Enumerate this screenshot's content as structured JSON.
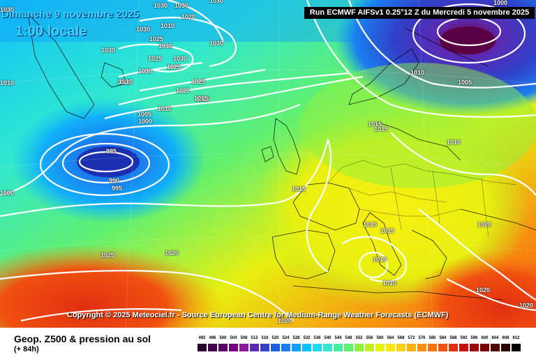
{
  "map": {
    "date_title": "Dimanche 9 novembre 2025",
    "time_title": "1:00 locale",
    "run_info": "Run ECMWF AIFSv1 0.25°12 Z du Mercredi 5 novembre 2025",
    "copyright": "Copyright © 2025 Meteociel.fr - Source European Centre for Medium-Range Weather Forecasts (ECMWF)",
    "isobar_labels": [
      "1030",
      "1030",
      "1030",
      "1030",
      "1030",
      "1030",
      "1030",
      "1025",
      "1030",
      "1025",
      "1030",
      "1025",
      "1030",
      "1025",
      "1020",
      "1025",
      "1015",
      "1010",
      "1005",
      "1000",
      "985",
      "990",
      "995",
      "1015",
      "1015",
      "1015",
      "1015",
      "1015",
      "1010",
      "1010",
      "1005",
      "1000",
      "1020",
      "1025",
      "1020",
      "1020",
      "1020",
      "1020",
      "1010",
      "1010",
      "1010",
      "1020",
      "1000",
      "1015",
      "1010",
      "1010"
    ]
  },
  "footer": {
    "product_title": "Geop. Z500 & pression au sol",
    "lead_time": "(+ 84h)"
  },
  "legend": {
    "unit_ticks": [
      "492",
      "496",
      "500",
      "504",
      "508",
      "512",
      "516",
      "520",
      "524",
      "528",
      "532",
      "536",
      "540",
      "544",
      "548",
      "552",
      "556",
      "560",
      "564",
      "568",
      "572",
      "576",
      "580",
      "584",
      "588",
      "592",
      "596",
      "600",
      "604",
      "608",
      "612"
    ],
    "colors": [
      "#2a0030",
      "#40004a",
      "#5a0066",
      "#74007f",
      "#8a1a9a",
      "#5a2ab4",
      "#3040c8",
      "#2060e0",
      "#1a80f0",
      "#10a0f8",
      "#10c0f8",
      "#20d8f0",
      "#30e8d0",
      "#40f0a0",
      "#60f070",
      "#90f040",
      "#c0f020",
      "#e8f010",
      "#f8e810",
      "#f8d010",
      "#f8b010",
      "#f89010",
      "#f87010",
      "#f05010",
      "#e03010",
      "#c81010",
      "#a00808",
      "#780000",
      "#500000",
      "#280000",
      "#000000"
    ]
  }
}
